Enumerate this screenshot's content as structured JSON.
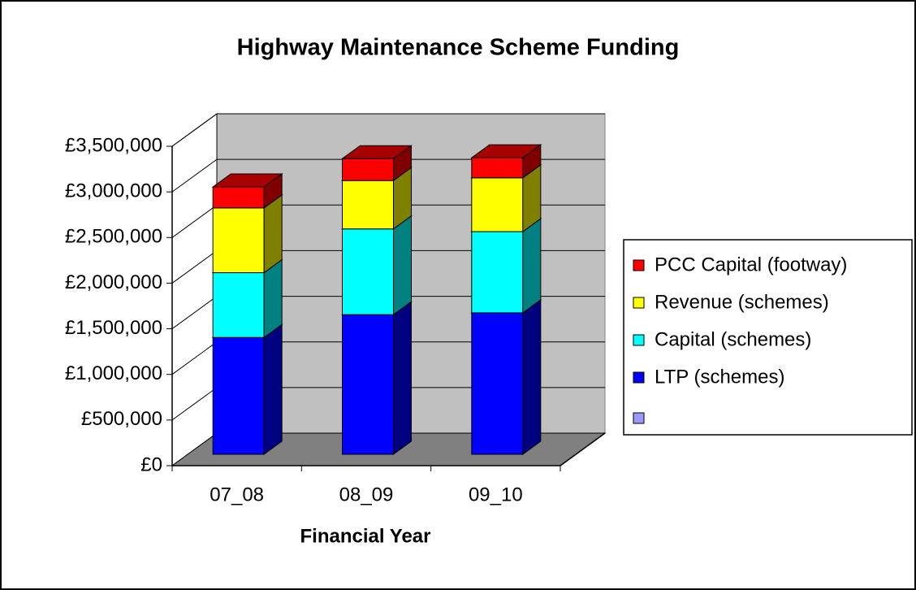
{
  "chart_data": {
    "type": "bar",
    "title": "Highway Maintenance Scheme Funding",
    "x_label": "Financial Year",
    "categories": [
      "07_08",
      "08_09",
      "09_10"
    ],
    "series": [
      {
        "name": "LTP (schemes)",
        "color": "#0000ff",
        "values": [
          1280000,
          1530000,
          1550000
        ]
      },
      {
        "name": "Capital (schemes)",
        "color": "#00ffff",
        "values": [
          710000,
          940000,
          890000
        ]
      },
      {
        "name": "Revenue (schemes)",
        "color": "#ffff00",
        "values": [
          710000,
          530000,
          590000
        ]
      },
      {
        "name": "PCC Capital (footway)",
        "color": "#ff0000",
        "values": [
          230000,
          240000,
          220000
        ]
      }
    ],
    "stacked": true,
    "ylim": [
      0,
      3500000
    ],
    "yticks": [
      {
        "value": 0,
        "label": "£0"
      },
      {
        "value": 500000,
        "label": "£500,000"
      },
      {
        "value": 1000000,
        "label": "£1,000,000"
      },
      {
        "value": 1500000,
        "label": "£1,500,000"
      },
      {
        "value": 2000000,
        "label": "£2,000,000"
      },
      {
        "value": 2500000,
        "label": "£2,500,000"
      },
      {
        "value": 3000000,
        "label": "£3,000,000"
      },
      {
        "value": 3500000,
        "label": "£3,500,000"
      }
    ],
    "grid": true,
    "legend": "right"
  }
}
